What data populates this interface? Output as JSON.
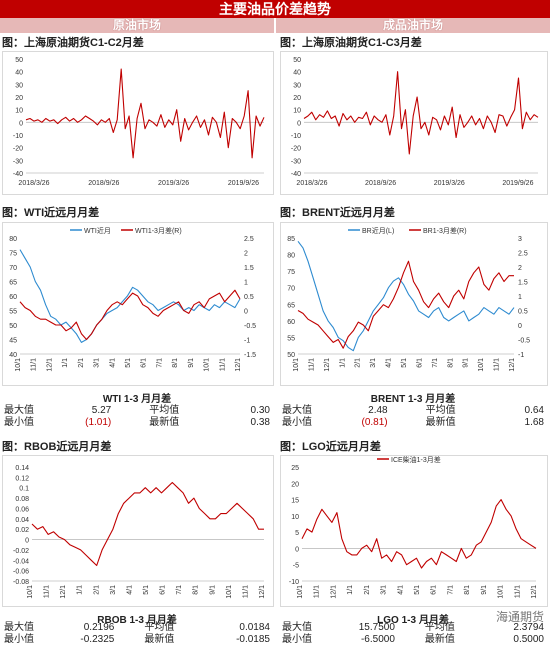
{
  "title": "主要油品价差趋势",
  "columns": [
    "原油市场",
    "成品油市场"
  ],
  "panels": {
    "p1": {
      "title": "图：上海原油期货C1-C2月差"
    },
    "p2": {
      "title": "图：上海原油期货C1-C3月差"
    },
    "p3": {
      "title": "图：WTI近远月月差"
    },
    "p4": {
      "title": "图：BRENT近远月月差"
    },
    "p5": {
      "title": "图：RBOB近远月月差"
    },
    "p6": {
      "title": "图：LGO近远月月差"
    }
  },
  "stats": {
    "wti": {
      "title": "WTI 1-3 月月差",
      "max_label": "最大值",
      "max": "5.27",
      "avg_label": "平均值",
      "avg": "0.30",
      "min_label": "最小值",
      "min": "(1.01)",
      "new_label": "最新值",
      "new": "0.38"
    },
    "brent": {
      "title": "BRENT 1-3 月月差",
      "max_label": "最大值",
      "max": "2.48",
      "avg_label": "平均值",
      "avg": "0.64",
      "min_label": "最小值",
      "min": "(0.81)",
      "new_label": "最新值",
      "new": "1.68"
    },
    "rbob": {
      "title": "RBOB 1-3 月月差",
      "max_label": "最大值",
      "max": "0.2196",
      "avg_label": "平均值",
      "avg": "0.0184",
      "min_label": "最小值",
      "min": "-0.2325",
      "new_label": "最新值",
      "new": "-0.0185"
    },
    "lgo": {
      "title": "LGO 1-3 月月差",
      "max_label": "最大值",
      "max": "15.7500",
      "avg_label": "平均值",
      "avg": "2.3794",
      "min_label": "最小值",
      "min": "-6.5000",
      "new_label": "最新值",
      "new": "0.5000"
    }
  },
  "watermark": "海通期货",
  "colors": {
    "red": "#c00000",
    "blue": "#2e8bd0",
    "header": "#c00000",
    "colhead": "#e6b8b7"
  },
  "chart_data": [
    {
      "id": "sc12",
      "type": "line",
      "title": "图：上海原油期货C1-C2月差",
      "x_ticks": [
        "2018/3/26",
        "2018/9/26",
        "2019/3/26",
        "2019/9/26"
      ],
      "ylim": [
        -40,
        50
      ],
      "y_ticks": [
        -40,
        -30,
        -20,
        -10,
        0,
        10,
        20,
        30,
        40,
        50
      ],
      "series": [
        {
          "color": "#c00000",
          "values": [
            2,
            3,
            1,
            2,
            0,
            3,
            1,
            2,
            -1,
            2,
            4,
            1,
            3,
            0,
            2,
            5,
            3,
            1,
            -2,
            2,
            0,
            3,
            -8,
            2,
            42,
            -5,
            5,
            -28,
            3,
            15,
            -5,
            2,
            0,
            -3,
            6,
            -4,
            2,
            -2,
            10,
            -15,
            3,
            -6,
            0,
            5,
            -4,
            2,
            -10,
            4,
            0,
            -12,
            8,
            -20,
            3,
            0,
            -5,
            5,
            25,
            -28,
            5,
            -3,
            4
          ]
        }
      ]
    },
    {
      "id": "sc13",
      "type": "line",
      "title": "图：上海原油期货C1-C3月差",
      "x_ticks": [
        "2018/3/26",
        "2018/9/26",
        "2019/3/26",
        "2019/9/26"
      ],
      "ylim": [
        -40,
        50
      ],
      "y_ticks": [
        -40,
        -30,
        -20,
        -10,
        0,
        10,
        20,
        30,
        40,
        50
      ],
      "series": [
        {
          "color": "#c00000",
          "values": [
            3,
            5,
            8,
            2,
            6,
            4,
            9,
            3,
            5,
            -3,
            7,
            2,
            5,
            0,
            4,
            3,
            8,
            -2,
            5,
            2,
            0,
            6,
            -10,
            5,
            40,
            -5,
            10,
            -25,
            5,
            20,
            -5,
            0,
            -10,
            4,
            2,
            -6,
            5,
            -2,
            12,
            -12,
            6,
            -4,
            0,
            5,
            -2,
            3,
            -5,
            5,
            0,
            -8,
            6,
            5,
            -3,
            4,
            10,
            35,
            -5,
            8,
            2,
            6,
            4
          ]
        }
      ]
    },
    {
      "id": "wti",
      "type": "line",
      "title": "图：WTI近远月月差",
      "x_ticks": [
        "10/1",
        "11/1",
        "12/1",
        "1/1",
        "2/1",
        "3/1",
        "4/1",
        "5/1",
        "6/1",
        "7/1",
        "8/1",
        "9/1",
        "10/1",
        "11/1",
        "12/1"
      ],
      "ylim_left": [
        40,
        80
      ],
      "y_ticks_left": [
        40,
        45,
        50,
        55,
        60,
        65,
        70,
        75,
        80
      ],
      "ylim_right": [
        -1.5,
        2.5
      ],
      "y_ticks_right": [
        -1.5,
        -1,
        -0.5,
        0,
        0.5,
        1,
        1.5,
        2,
        2.5
      ],
      "series": [
        {
          "name": "WTI近月",
          "axis": "left",
          "color": "#2e8bd0",
          "values": [
            76,
            73,
            70,
            65,
            62,
            57,
            53,
            52,
            50,
            51,
            49,
            47,
            44,
            45,
            47,
            50,
            52,
            54,
            55,
            56,
            58,
            60,
            63,
            62,
            60,
            58,
            57,
            55,
            56,
            57,
            58,
            57,
            55,
            56,
            55,
            57,
            56,
            55,
            57,
            56,
            58,
            57,
            56,
            59
          ]
        },
        {
          "name": "WTI1-3月差(R)",
          "axis": "right",
          "color": "#c00000",
          "values": [
            0.3,
            0.1,
            0.0,
            -0.2,
            -0.3,
            -0.3,
            -0.4,
            -0.5,
            -0.5,
            -0.7,
            -0.6,
            -0.4,
            -0.8,
            -1.0,
            -0.8,
            -0.5,
            -0.3,
            0.0,
            0.2,
            0.3,
            0.2,
            0.4,
            0.6,
            0.5,
            0.2,
            0.1,
            -0.1,
            -0.2,
            0.0,
            0.1,
            0.2,
            0.3,
            0.0,
            -0.1,
            0.2,
            0.3,
            0.1,
            0.4,
            0.5,
            0.6,
            0.3,
            0.5,
            0.7,
            0.4
          ]
        }
      ]
    },
    {
      "id": "brent",
      "type": "line",
      "title": "图：BRENT近远月月差",
      "x_ticks": [
        "10/1",
        "11/1",
        "12/1",
        "1/1",
        "2/1",
        "3/1",
        "4/1",
        "5/1",
        "6/1",
        "7/1",
        "8/1",
        "9/1",
        "10/1",
        "11/1",
        "12/1"
      ],
      "ylim_left": [
        50,
        85
      ],
      "y_ticks_left": [
        50,
        55,
        60,
        65,
        70,
        75,
        80,
        85
      ],
      "ylim_right": [
        -1,
        3
      ],
      "y_ticks_right": [
        -1,
        -0.5,
        0,
        0.5,
        1,
        1.5,
        2,
        2.5,
        3
      ],
      "series": [
        {
          "name": "BR近月(L)",
          "axis": "left",
          "color": "#2e8bd0",
          "values": [
            84,
            82,
            78,
            73,
            68,
            63,
            60,
            58,
            55,
            54,
            52,
            51,
            55,
            57,
            60,
            63,
            65,
            67,
            70,
            72,
            73,
            71,
            68,
            66,
            63,
            62,
            61,
            63,
            64,
            61,
            60,
            61,
            62,
            63,
            60,
            61,
            62,
            64,
            63,
            62,
            64,
            63,
            62,
            64
          ]
        },
        {
          "name": "BR1-3月差(R)",
          "axis": "right",
          "color": "#c00000",
          "values": [
            0.5,
            0.4,
            0.2,
            0.1,
            0.0,
            -0.2,
            -0.4,
            -0.6,
            -0.5,
            -0.8,
            -0.4,
            -0.2,
            0.1,
            0.0,
            -0.2,
            0.3,
            0.5,
            0.7,
            0.6,
            0.9,
            1.3,
            1.8,
            2.2,
            1.5,
            1.2,
            0.8,
            0.6,
            0.9,
            1.1,
            0.8,
            0.6,
            1.0,
            1.2,
            0.9,
            1.5,
            1.8,
            2.0,
            1.4,
            1.2,
            1.6,
            1.8,
            1.5,
            1.7,
            1.7
          ]
        }
      ]
    },
    {
      "id": "rbob",
      "type": "line",
      "title": "图：RBOB近远月月差",
      "x_ticks": [
        "10/1",
        "11/1",
        "12/1",
        "1/1",
        "2/1",
        "3/1",
        "4/1",
        "5/1",
        "6/1",
        "7/1",
        "8/1",
        "9/1",
        "10/1",
        "11/1",
        "12/1"
      ],
      "ylim": [
        -0.08,
        0.14
      ],
      "y_ticks": [
        -0.08,
        -0.06,
        -0.04,
        -0.02,
        0,
        0.02,
        0.04,
        0.06,
        0.08,
        0.1,
        0.12,
        0.14
      ],
      "series": [
        {
          "color": "#c00000",
          "values": [
            0.03,
            0.02,
            0.025,
            0.01,
            0.015,
            0.005,
            0.0,
            -0.01,
            -0.015,
            -0.02,
            -0.03,
            -0.04,
            -0.05,
            -0.02,
            0.0,
            0.02,
            0.05,
            0.07,
            0.08,
            0.09,
            0.09,
            0.1,
            0.09,
            0.1,
            0.09,
            0.1,
            0.11,
            0.1,
            0.09,
            0.07,
            0.08,
            0.06,
            0.05,
            0.04,
            0.04,
            0.05,
            0.05,
            0.06,
            0.07,
            0.06,
            0.05,
            0.04,
            0.02,
            0.02
          ]
        }
      ]
    },
    {
      "id": "lgo",
      "type": "line",
      "title": "图：LGO近远月月差",
      "x_ticks": [
        "10/1",
        "11/1",
        "12/1",
        "1/1",
        "2/1",
        "3/1",
        "4/1",
        "5/1",
        "6/1",
        "7/1",
        "8/1",
        "9/1",
        "10/1",
        "11/1",
        "12/1"
      ],
      "ylim": [
        -10,
        25
      ],
      "y_ticks": [
        -10,
        -5,
        0,
        5,
        10,
        15,
        20,
        25
      ],
      "series": [
        {
          "name": "ICE柴油1-3月差",
          "color": "#c00000",
          "values": [
            3,
            6,
            5,
            9,
            12,
            10,
            8,
            11,
            3,
            -1,
            -2,
            -2,
            0,
            1,
            -1,
            3,
            -3,
            -2,
            -4,
            -1,
            -2,
            -5,
            -4,
            -3,
            -6,
            -4,
            -3,
            -5,
            -1,
            -2,
            -3,
            -4,
            0,
            -3,
            -2,
            1,
            2,
            5,
            8,
            13,
            15,
            12,
            10,
            6,
            3,
            2,
            1,
            0
          ]
        }
      ]
    }
  ]
}
